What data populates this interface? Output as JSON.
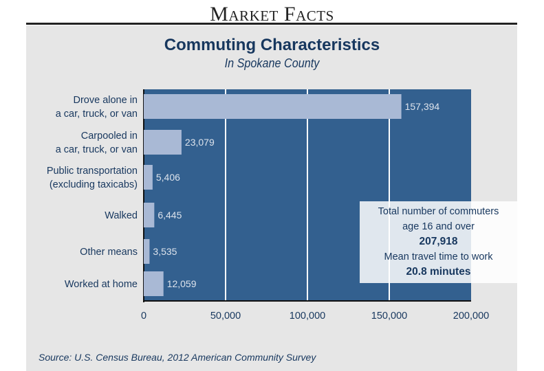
{
  "header": "Market Facts",
  "info": {
    "line1": "Total number of commuters",
    "line2": "age 16 and over",
    "total": "207,918",
    "line3": "Mean travel time to work",
    "mean": "20.8 minutes"
  },
  "source": "Source: U.S. Census Bureau, 2012 American Community Survey",
  "colors": {
    "plot": "#33608f",
    "bar": "#a9b9d5",
    "text": "#17375e"
  },
  "chart_data": {
    "type": "bar",
    "orientation": "horizontal",
    "title": "Commuting Characteristics",
    "subtitle": "In Spokane County",
    "categories": [
      [
        "Drove alone in",
        "a car, truck, or van"
      ],
      [
        "Carpooled in",
        "a car, truck, or van"
      ],
      [
        "Public transportation",
        "(excluding taxicabs)"
      ],
      [
        "Walked"
      ],
      [
        "Other means"
      ],
      [
        "Worked at home"
      ]
    ],
    "values": [
      157394,
      23079,
      5406,
      6445,
      3535,
      12059
    ],
    "value_labels": [
      "157,394",
      "23,079",
      "5,406",
      "6,445",
      "3,535",
      "12,059"
    ],
    "xlim": [
      0,
      200000
    ],
    "xticks": [
      0,
      50000,
      100000,
      150000,
      200000
    ],
    "xtick_labels": [
      "0",
      "50,000",
      "100,000",
      "150,000",
      "200,000"
    ],
    "grid": true
  }
}
